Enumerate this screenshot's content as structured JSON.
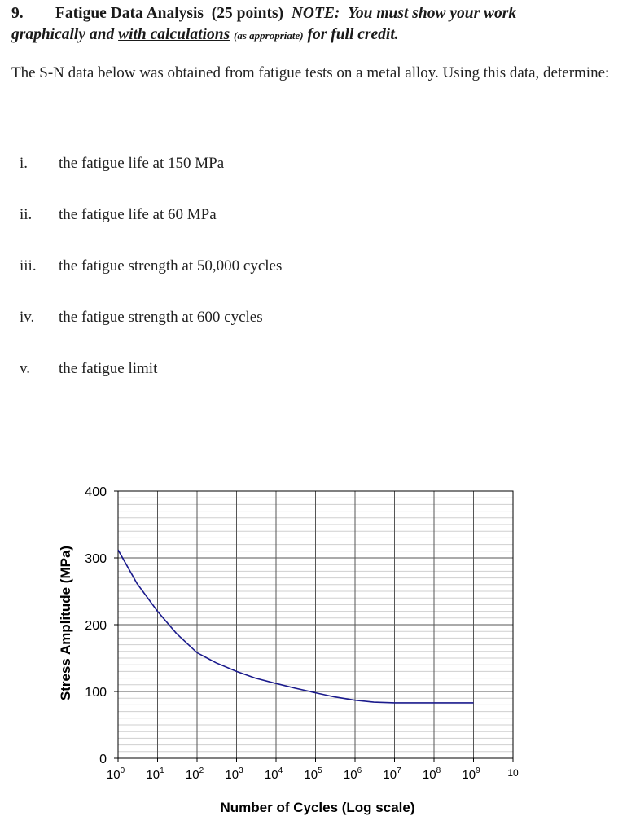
{
  "problem": {
    "number": "9.",
    "title": "Fatigue Data Analysis",
    "points": "(25 points)",
    "note_label": "NOTE:",
    "note_text": "You must show your work",
    "line2_a": "graphically and",
    "line2_b": "with calculations",
    "line2_c": "(as appropriate)",
    "line2_d": "for full credit."
  },
  "intro": "The S-N data below was obtained from fatigue tests on a metal alloy.  Using this data, determine:",
  "questions": [
    {
      "roman": "i.",
      "text": "the fatigue life at 150 MPa"
    },
    {
      "roman": "ii.",
      "text": "the fatigue life at 60 MPa"
    },
    {
      "roman": "iii.",
      "text": "the fatigue strength at 50,000 cycles"
    },
    {
      "roman": "iv.",
      "text": "the fatigue strength at 600 cycles"
    },
    {
      "roman": "v.",
      "text": "the fatigue limit"
    }
  ],
  "chart_data": {
    "type": "line",
    "xlabel": "Number of Cycles (Log scale)",
    "ylabel": "Stress Amplitude (MPa)",
    "x_scale": "log",
    "xlim": [
      1,
      10000000000
    ],
    "ylim": [
      0,
      400
    ],
    "x_ticks": [
      {
        "base": "10",
        "exp": "0"
      },
      {
        "base": "10",
        "exp": "1"
      },
      {
        "base": "10",
        "exp": "2"
      },
      {
        "base": "10",
        "exp": "3"
      },
      {
        "base": "10",
        "exp": "4"
      },
      {
        "base": "10",
        "exp": "5"
      },
      {
        "base": "10",
        "exp": "6"
      },
      {
        "base": "10",
        "exp": "7"
      },
      {
        "base": "10",
        "exp": "8"
      },
      {
        "base": "10",
        "exp": "9"
      },
      {
        "base": "10",
        "exp": ""
      }
    ],
    "y_ticks": [
      "0",
      "100",
      "200",
      "300",
      "400"
    ],
    "grid": true,
    "line_color": "#1a1a8c",
    "series": [
      {
        "x": [
          1,
          3,
          10,
          30,
          100,
          300,
          1000,
          3000,
          10000,
          30000,
          100000,
          300000,
          1000000,
          3000000,
          10000000,
          100000000,
          1000000000
        ],
        "y": [
          312,
          262,
          220,
          187,
          158,
          143,
          130,
          120,
          112,
          105,
          98,
          92,
          87,
          84,
          83,
          83,
          83
        ]
      }
    ]
  }
}
